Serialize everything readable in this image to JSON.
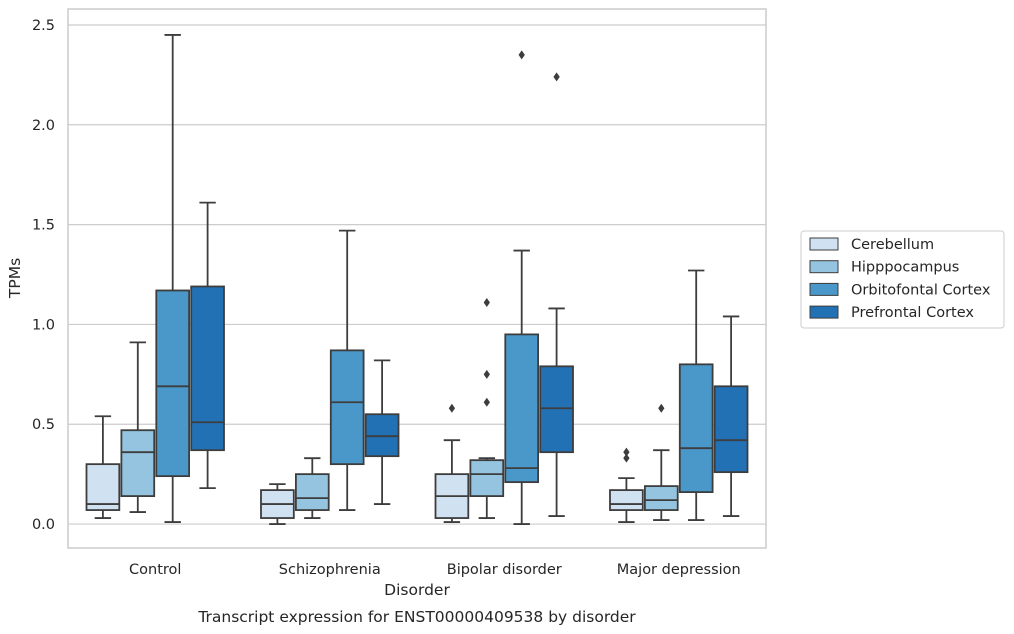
{
  "chart_data": {
    "type": "box",
    "title": "",
    "caption": "Transcript expression for ENST00000409538 by disorder",
    "xlabel": "Disorder",
    "ylabel": "TPMs",
    "ylim": [
      -0.12,
      2.58
    ],
    "yticks": [
      0.0,
      0.5,
      1.0,
      1.5,
      2.0,
      2.5
    ],
    "ytick_labels": [
      "0.0",
      "0.5",
      "1.0",
      "1.5",
      "2.0",
      "2.5"
    ],
    "grid": "horizontal",
    "legend_position": "right",
    "categories": [
      "Control",
      "Schizophrenia",
      "Bipolar disorder",
      "Major depression"
    ],
    "series": [
      {
        "name": "Cerebellum",
        "color": "#d0e1f2",
        "boxes": [
          {
            "whislo": 0.03,
            "q1": 0.07,
            "med": 0.1,
            "q3": 0.3,
            "whishi": 0.54,
            "fliers": []
          },
          {
            "whislo": 0.0,
            "q1": 0.03,
            "med": 0.1,
            "q3": 0.17,
            "whishi": 0.2,
            "fliers": []
          },
          {
            "whislo": 0.01,
            "q1": 0.03,
            "med": 0.14,
            "q3": 0.25,
            "whishi": 0.42,
            "fliers": [
              0.58
            ]
          },
          {
            "whislo": 0.01,
            "q1": 0.07,
            "med": 0.1,
            "q3": 0.17,
            "whishi": 0.23,
            "fliers": [
              0.33,
              0.36
            ]
          }
        ]
      },
      {
        "name": "Hipppocampus",
        "color": "#94c4df",
        "boxes": [
          {
            "whislo": 0.06,
            "q1": 0.14,
            "med": 0.36,
            "q3": 0.47,
            "whishi": 0.91,
            "fliers": []
          },
          {
            "whislo": 0.03,
            "q1": 0.07,
            "med": 0.13,
            "q3": 0.25,
            "whishi": 0.33,
            "fliers": []
          },
          {
            "whislo": 0.03,
            "q1": 0.14,
            "med": 0.25,
            "q3": 0.32,
            "whishi": 0.33,
            "fliers": [
              0.61,
              0.75,
              1.11
            ]
          },
          {
            "whislo": 0.02,
            "q1": 0.07,
            "med": 0.12,
            "q3": 0.19,
            "whishi": 0.37,
            "fliers": [
              0.58
            ]
          }
        ]
      },
      {
        "name": "Orbitofontal Cortex",
        "color": "#4a98c9",
        "boxes": [
          {
            "whislo": 0.01,
            "q1": 0.24,
            "med": 0.69,
            "q3": 1.17,
            "whishi": 2.45,
            "fliers": []
          },
          {
            "whislo": 0.07,
            "q1": 0.3,
            "med": 0.61,
            "q3": 0.87,
            "whishi": 1.47,
            "fliers": []
          },
          {
            "whislo": 0.0,
            "q1": 0.21,
            "med": 0.28,
            "q3": 0.95,
            "whishi": 1.37,
            "fliers": [
              2.35
            ]
          },
          {
            "whislo": 0.02,
            "q1": 0.16,
            "med": 0.38,
            "q3": 0.8,
            "whishi": 1.27,
            "fliers": []
          }
        ]
      },
      {
        "name": "Prefrontal Cortex",
        "color": "#2271b5",
        "boxes": [
          {
            "whislo": 0.18,
            "q1": 0.37,
            "med": 0.51,
            "q3": 1.19,
            "whishi": 1.61,
            "fliers": []
          },
          {
            "whislo": 0.1,
            "q1": 0.34,
            "med": 0.44,
            "q3": 0.55,
            "whishi": 0.82,
            "fliers": []
          },
          {
            "whislo": 0.04,
            "q1": 0.36,
            "med": 0.58,
            "q3": 0.79,
            "whishi": 1.08,
            "fliers": [
              2.24
            ]
          },
          {
            "whislo": 0.04,
            "q1": 0.26,
            "med": 0.42,
            "q3": 0.69,
            "whishi": 1.04,
            "fliers": []
          }
        ]
      }
    ]
  }
}
